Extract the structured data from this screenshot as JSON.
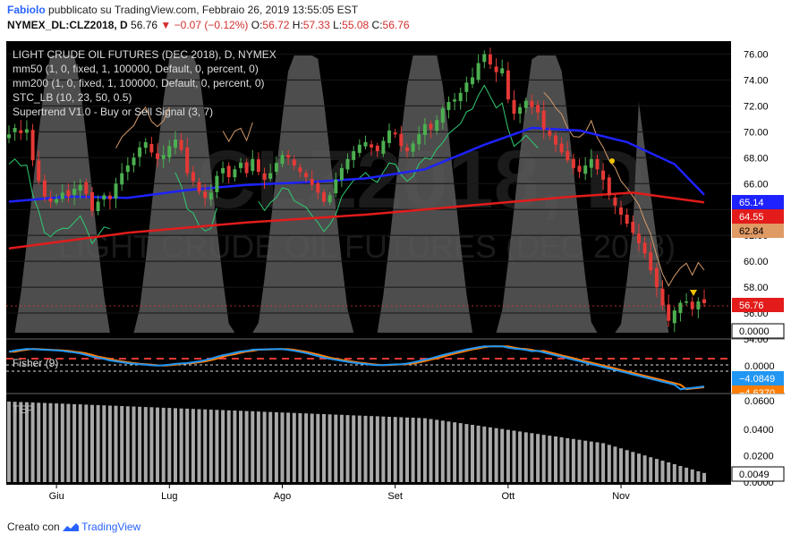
{
  "header": {
    "author": "Fabiolo",
    "published": "pubblicato su TradingView.com, Febbraio 26, 2019 13:55:05 EST",
    "symbol": "NYMEX_DL:CLZ2018, D",
    "last": "56.76",
    "arrow": "▼",
    "change": "−0.07 (−0.12%)",
    "o_label": "O:",
    "o_value": "56.72",
    "h_label": "H:",
    "h_value": "57.33",
    "l_label": "L:",
    "l_value": "55.08",
    "c_label": "C:",
    "c_value": "56.76"
  },
  "legend": {
    "title": "LIGHT CRUDE OIL FUTURES (DEC 2018), D, NYMEX",
    "ind1": "mm50 (1, 0, fixed, 1, 100000, Default, 0, percent, 0)",
    "ind2": "mm200 (1, 0, fixed, 1, 100000, Default, 0, percent, 0)",
    "ind3": "STC_LB (10, 23, 50, 0.5)",
    "ind4": "Supertrend V1.0 - Buy or Sell Signal (3, 7)"
  },
  "watermark": {
    "big": "CLZ2018, D",
    "small": "LIGHT CRUDE OIL FUTURES (DEC 2018)"
  },
  "fisher_label": "Fisher (9)",
  "bottom_label": "TEP",
  "footer": {
    "created": "Creato con",
    "brand": "TradingView"
  },
  "colors": {
    "background": "#000000",
    "candle_up": "#4caf50",
    "candle_down": "#e53935",
    "mm50": "#1e22ff",
    "mm200": "#e31b1b",
    "supertrend_up": "#2ecc71",
    "supertrend_down": "#d49a6a",
    "stc_fill": "#5a5a5a",
    "fisher": "#2196f3",
    "trigger": "#ff7d00",
    "histogram": "#a8a8a8"
  },
  "badges": {
    "price": "56.76",
    "mm50": "65.14",
    "mm200": "64.55",
    "supertrend": "62.84",
    "stc": "0.0000",
    "fisher_zero": "0.0000",
    "fisher": "−4.0849",
    "trigger": "−4.6370",
    "hist_top": "0.0600",
    "hist_val": "0.0049"
  },
  "chart_data": {
    "type": "candlestick",
    "price_axis": {
      "ticks": [
        "76.00",
        "74.00",
        "72.00",
        "70.00",
        "68.00",
        "66.00",
        "64.00",
        "62.00",
        "60.00",
        "58.00",
        "56.00",
        "54.00"
      ],
      "range": [
        54,
        77
      ]
    },
    "fisher_axis": {
      "ticks": [
        "0.0000"
      ]
    },
    "hist_axis": {
      "ticks": [
        "0.0600",
        "0.0400",
        "0.0200",
        "0.0000"
      ],
      "range": [
        0,
        0.063
      ]
    },
    "x_labels": [
      "Giu",
      "Lug",
      "Ago",
      "Set",
      "Ott",
      "Nov"
    ],
    "x_label_index": [
      8,
      27,
      46,
      65,
      84,
      103
    ],
    "n_bars": 118,
    "closes": [
      69.8,
      70.3,
      69.9,
      70.2,
      67.8,
      66.2,
      65.0,
      64.6,
      64.8,
      65.3,
      65.0,
      65.6,
      65.9,
      65.2,
      63.9,
      64.6,
      65.1,
      64.8,
      66.0,
      66.8,
      67.4,
      68.0,
      68.8,
      69.2,
      68.4,
      67.9,
      68.2,
      68.9,
      69.4,
      68.6,
      66.8,
      66.2,
      65.4,
      64.9,
      65.3,
      66.6,
      67.2,
      66.5,
      67.1,
      67.6,
      66.8,
      67.9,
      66.9,
      66.3,
      66.8,
      67.6,
      68.2,
      68.0,
      67.4,
      66.9,
      66.5,
      65.9,
      65.3,
      64.6,
      65.1,
      66.3,
      67.2,
      67.9,
      68.5,
      69.0,
      69.2,
      68.8,
      68.5,
      69.3,
      70.1,
      69.8,
      68.9,
      68.5,
      69.1,
      69.8,
      70.6,
      70.2,
      70.9,
      71.8,
      72.3,
      72.5,
      73.0,
      73.8,
      74.2,
      75.3,
      76.0,
      75.2,
      74.6,
      74.9,
      72.5,
      71.4,
      71.9,
      72.4,
      71.9,
      71.5,
      70.2,
      69.7,
      69.0,
      68.4,
      67.8,
      67.2,
      66.9,
      67.4,
      67.9,
      67.1,
      66.3,
      65.1,
      64.3,
      63.6,
      62.9,
      62.2,
      61.4,
      60.6,
      59.3,
      58.0,
      56.6,
      55.4,
      56.2,
      56.8,
      56.9,
      56.3,
      56.9,
      56.76
    ],
    "fisher_scale": [
      -4.6,
      1.8
    ],
    "series": [
      {
        "name": "mm50",
        "points": [
          [
            0,
            64.6
          ],
          [
            10,
            65.0
          ],
          [
            20,
            64.9
          ],
          [
            30,
            65.5
          ],
          [
            40,
            65.9
          ],
          [
            50,
            66.1
          ],
          [
            60,
            66.4
          ],
          [
            70,
            67.1
          ],
          [
            80,
            69.0
          ],
          [
            88,
            70.3
          ],
          [
            96,
            70.1
          ],
          [
            104,
            69.2
          ],
          [
            112,
            67.5
          ],
          [
            117,
            65.14
          ]
        ]
      },
      {
        "name": "mm200",
        "points": [
          [
            0,
            61.0
          ],
          [
            20,
            62.2
          ],
          [
            40,
            63.0
          ],
          [
            60,
            63.6
          ],
          [
            80,
            64.4
          ],
          [
            95,
            65.0
          ],
          [
            105,
            65.3
          ],
          [
            117,
            64.55
          ]
        ]
      }
    ]
  }
}
